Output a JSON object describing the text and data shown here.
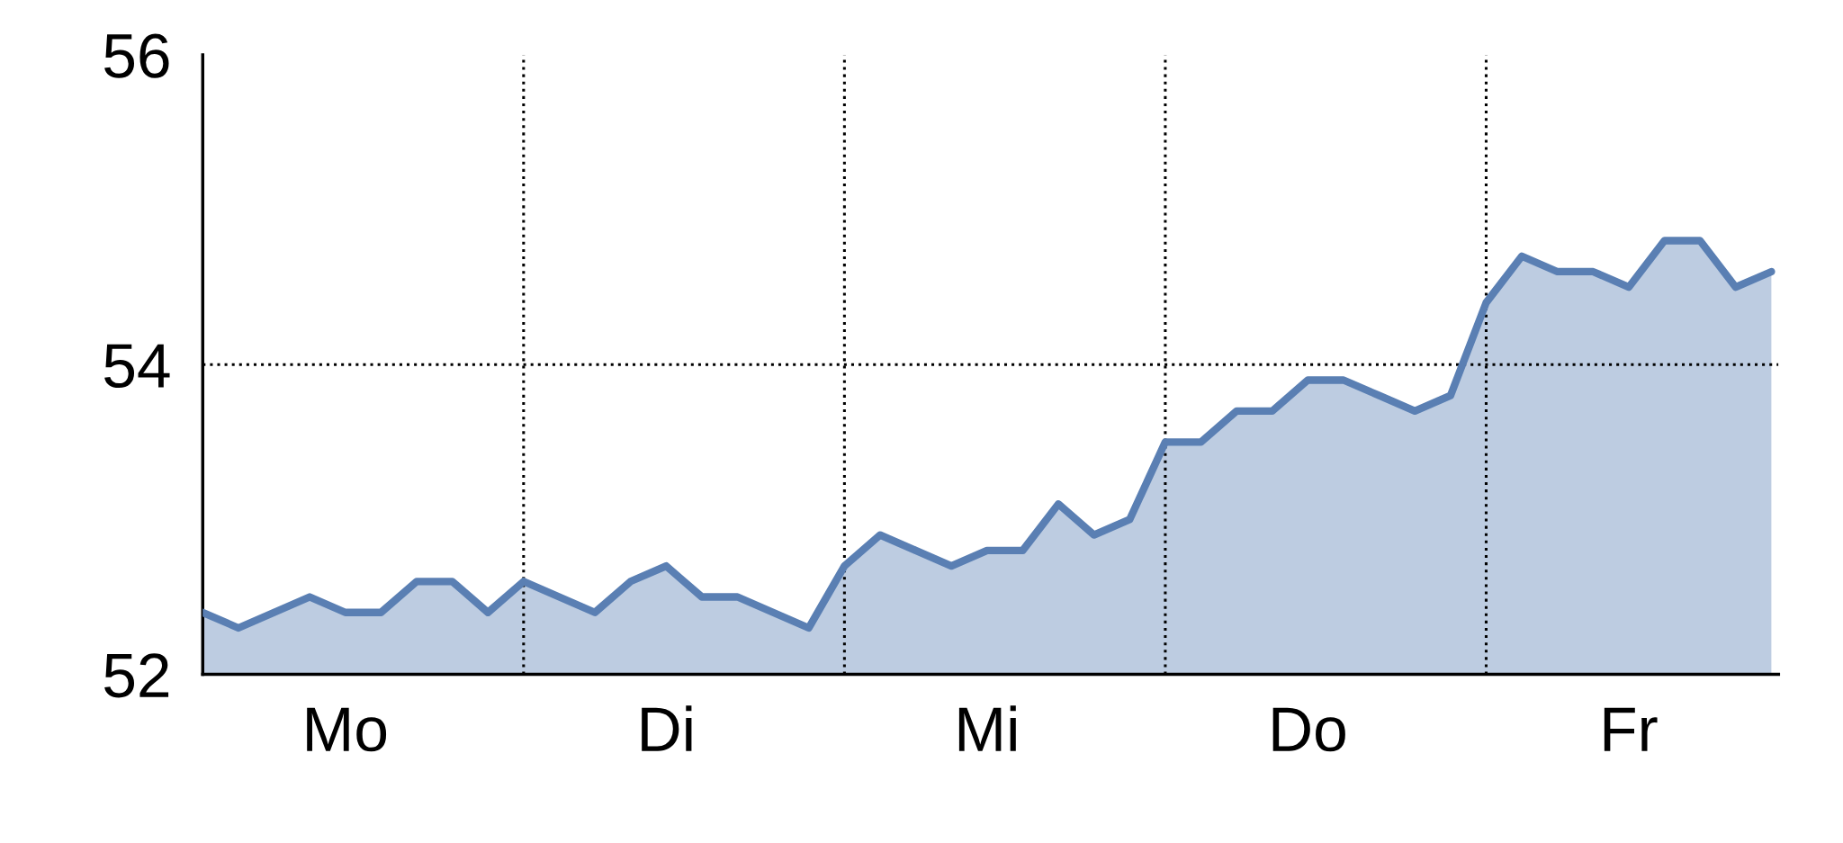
{
  "chart_data": {
    "type": "area",
    "categories": [
      null,
      null,
      null,
      null,
      "Mo",
      null,
      null,
      null,
      null,
      null,
      null,
      null,
      null,
      "Di",
      null,
      null,
      null,
      null,
      null,
      null,
      null,
      null,
      "Mi",
      null,
      null,
      null,
      null,
      null,
      null,
      null,
      null,
      "Do",
      null,
      null,
      null,
      null,
      null,
      null,
      null,
      null,
      "Fr",
      null,
      null,
      null,
      null
    ],
    "series": [
      {
        "color": "#5a7fb3",
        "values": [
          52.4,
          52.3,
          52.4,
          52.5,
          52.4,
          52.4,
          52.6,
          52.6,
          52.4,
          52.6,
          52.5,
          52.4,
          52.6,
          52.7,
          52.5,
          52.5,
          52.4,
          52.3,
          52.7,
          52.9,
          52.8,
          52.7,
          52.8,
          52.8,
          53.1,
          52.9,
          53.0,
          53.5,
          53.5,
          53.7,
          53.7,
          53.9,
          53.9,
          53.8,
          53.7,
          53.8,
          54.4,
          54.7,
          54.6,
          54.6,
          54.5,
          54.8,
          54.8,
          54.5,
          54.6
        ]
      }
    ],
    "ylim": [
      52,
      56
    ],
    "yticks": [
      52,
      54,
      56
    ],
    "line_style": "solid",
    "ref_lines": [
      {
        "axis": "y",
        "value": 54,
        "color": "#000000",
        "line_style": "dotted"
      }
    ]
  }
}
